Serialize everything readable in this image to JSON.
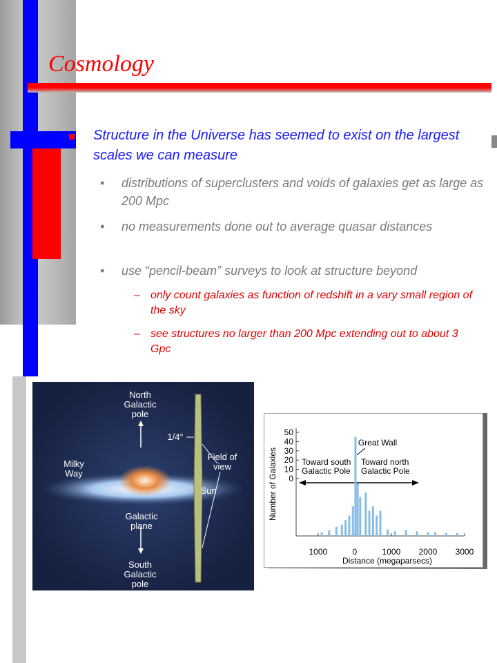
{
  "header": {
    "title": "Cosmology"
  },
  "body": {
    "point": "Structure in the Universe has seemed to exist on the largest scales we can measure",
    "subpoints": [
      "distributions of superclusters and voids of galaxies get as large as 200 Mpc",
      "no measurements done out to average quasar distances",
      "use “pencil-beam” surveys to look at structure beyond"
    ],
    "subsubpoints": [
      "only count galaxies as function of redshift in a vary small region of the sky",
      "see structures no larger than 200 Mpc extending out to about 3 Gpc"
    ]
  },
  "figure": {
    "labels": [
      "North Galactic pole",
      "1/4°",
      "Milky Way",
      "Field of view",
      "Sun",
      "Galactic plane",
      "South Galactic pole"
    ]
  },
  "chart_data": {
    "type": "bar",
    "ylabel": "Number of Galaxies",
    "xlabel": "Distance (megaparsecs)",
    "annotations": [
      "Great Wall",
      "Toward south Galactic Pole",
      "Toward north Galactic Pole"
    ],
    "x": [
      -900,
      -700,
      -500,
      -350,
      -250,
      -150,
      -50,
      20,
      80,
      150,
      300,
      400,
      500,
      600,
      700,
      900,
      1100,
      1400,
      1700,
      2000,
      2200,
      2500,
      2800
    ],
    "values": [
      -58,
      -56,
      -52,
      -50,
      -45,
      -40,
      -30,
      45,
      -5,
      -20,
      -15,
      -35,
      -30,
      -40,
      -35,
      -55,
      -57,
      -56,
      -57,
      -58,
      -58,
      -59,
      -59
    ],
    "color": "#86bde6",
    "xlim": [
      -1600,
      3000
    ],
    "ylim": [
      -62,
      50
    ],
    "xticks": [
      {
        "value": -1000,
        "label": "1000"
      },
      0,
      1000,
      2000,
      3000
    ],
    "yticks": [
      50,
      40,
      30,
      20,
      10,
      0
    ]
  }
}
